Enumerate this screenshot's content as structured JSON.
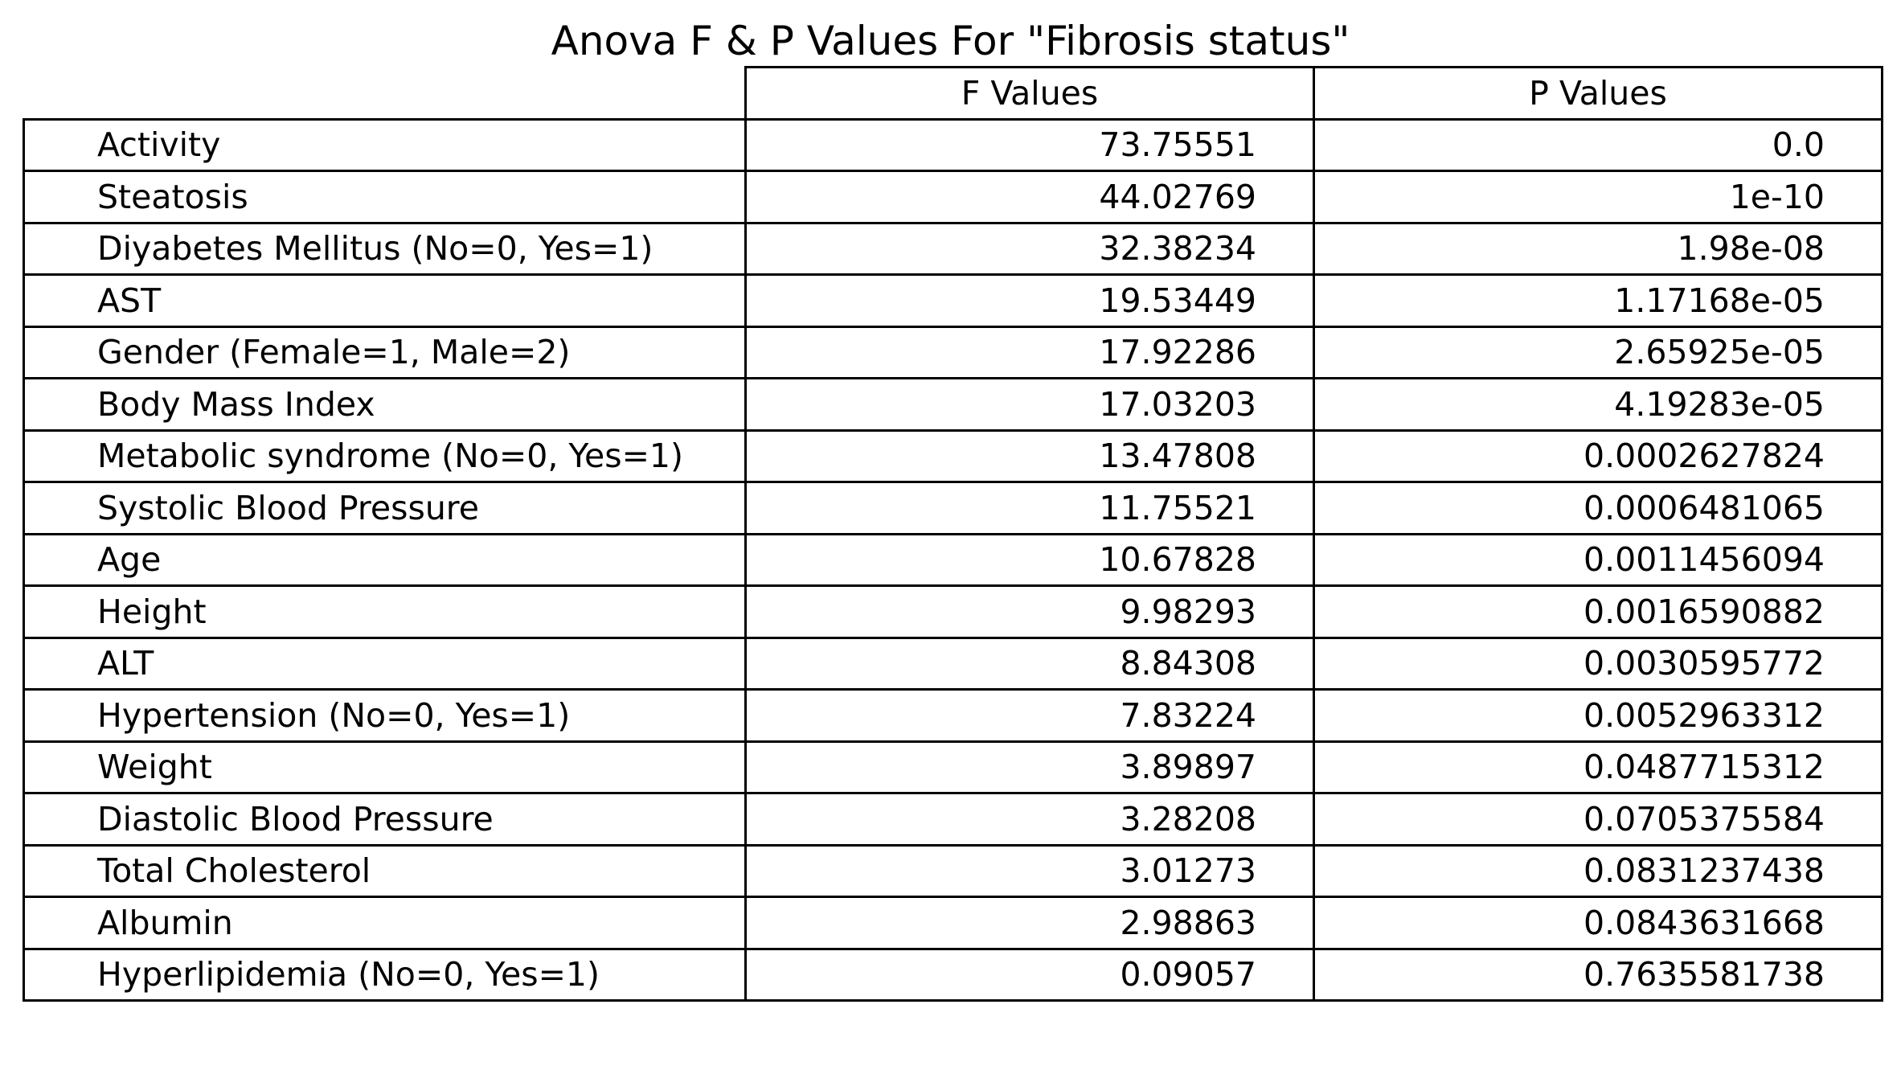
{
  "chart_data": {
    "type": "table",
    "title": "Anova F & P Values For \"Fibrosis status\"",
    "columns": [
      "F Values",
      "P Values"
    ],
    "rows": [
      {
        "label": "Activity",
        "f": "73.75551",
        "p": "0.0"
      },
      {
        "label": "Steatosis",
        "f": "44.02769",
        "p": "1e-10"
      },
      {
        "label": "Diyabetes Mellitus (No=0, Yes=1)",
        "f": "32.38234",
        "p": "1.98e-08"
      },
      {
        "label": "AST",
        "f": "19.53449",
        "p": "1.17168e-05"
      },
      {
        "label": "Gender (Female=1, Male=2)",
        "f": "17.92286",
        "p": "2.65925e-05"
      },
      {
        "label": "Body Mass Index",
        "f": "17.03203",
        "p": "4.19283e-05"
      },
      {
        "label": "Metabolic syndrome (No=0, Yes=1)",
        "f": "13.47808",
        "p": "0.0002627824"
      },
      {
        "label": "Systolic Blood Pressure",
        "f": "11.75521",
        "p": "0.0006481065"
      },
      {
        "label": "Age",
        "f": "10.67828",
        "p": "0.0011456094"
      },
      {
        "label": "Height",
        "f": "9.98293",
        "p": "0.0016590882"
      },
      {
        "label": "ALT",
        "f": "8.84308",
        "p": "0.0030595772"
      },
      {
        "label": "Hypertension (No=0, Yes=1)",
        "f": "7.83224",
        "p": "0.0052963312"
      },
      {
        "label": "Weight",
        "f": "3.89897",
        "p": "0.0487715312"
      },
      {
        "label": "Diastolic Blood Pressure",
        "f": "3.28208",
        "p": "0.0705375584"
      },
      {
        "label": "Total Cholesterol",
        "f": "3.01273",
        "p": "0.0831237438"
      },
      {
        "label": "Albumin",
        "f": "2.98863",
        "p": "0.0843631668"
      },
      {
        "label": "Hyperlipidemia (No=0, Yes=1)",
        "f": "0.09057",
        "p": "0.7635581738"
      }
    ]
  }
}
